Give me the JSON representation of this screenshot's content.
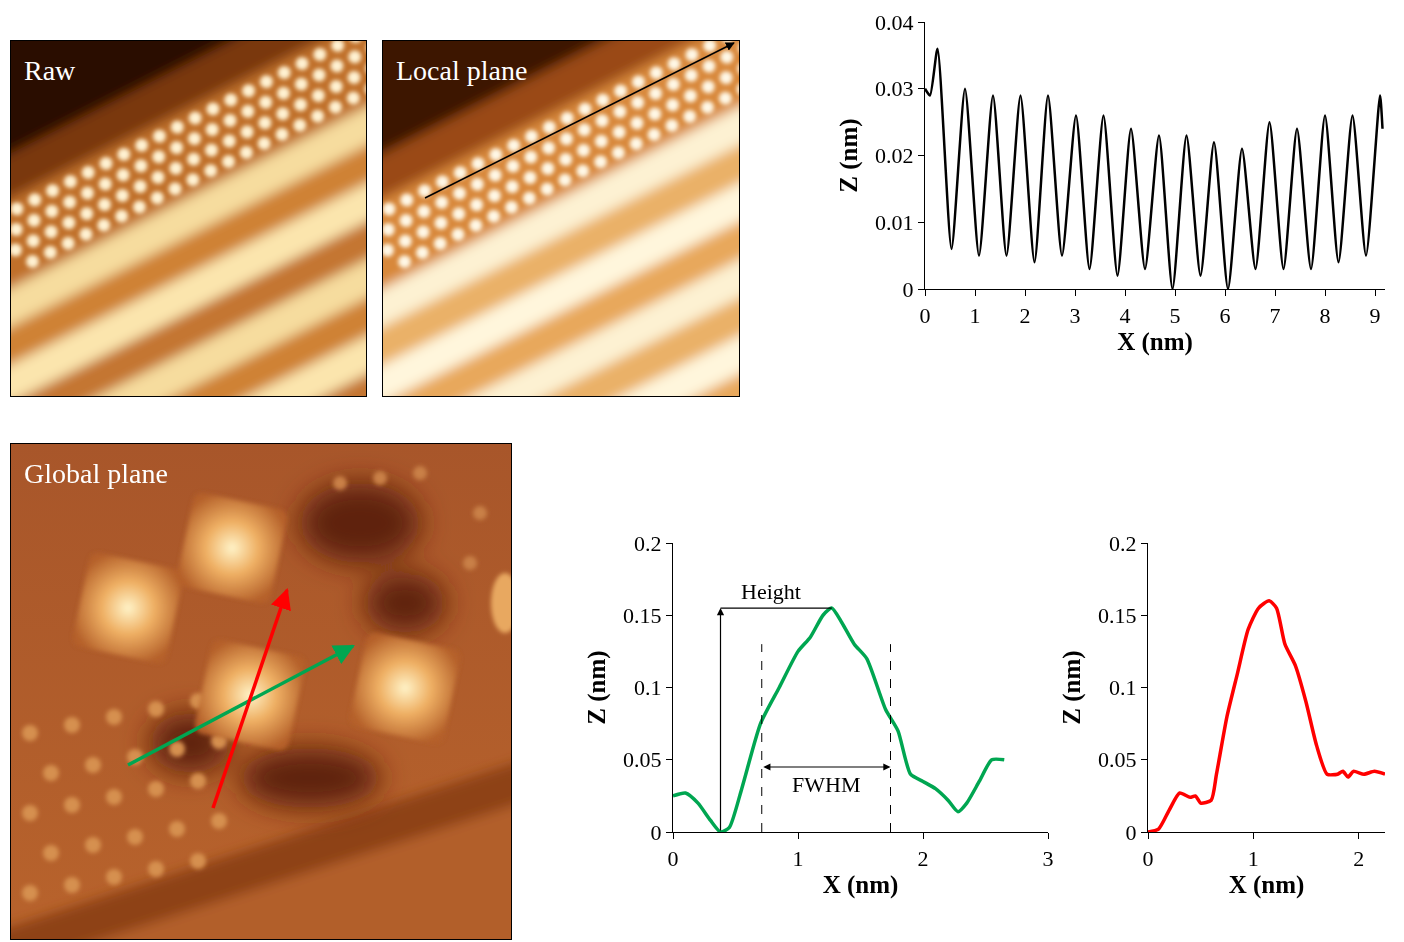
{
  "chart_data": [
    {
      "type": "line",
      "color": "#000000",
      "xlabel": "X (nm)",
      "ylabel": "Z (nm)",
      "x": [
        0,
        0.1,
        0.25,
        0.53,
        0.8,
        1.08,
        1.36,
        1.63,
        1.91,
        2.19,
        2.46,
        2.74,
        3.02,
        3.29,
        3.57,
        3.85,
        4.12,
        4.4,
        4.68,
        4.95,
        5.23,
        5.51,
        5.78,
        6.06,
        6.34,
        6.61,
        6.89,
        7.17,
        7.44,
        7.72,
        8.0,
        8.27,
        8.55,
        8.82,
        9.1,
        9.15
      ],
      "values": [
        0.03,
        0.029,
        0.036,
        0.006,
        0.03,
        0.005,
        0.029,
        0.005,
        0.029,
        0.004,
        0.029,
        0.005,
        0.026,
        0.003,
        0.026,
        0.002,
        0.024,
        0.003,
        0.023,
        0.0,
        0.023,
        0.002,
        0.022,
        0.0,
        0.021,
        0.003,
        0.025,
        0.003,
        0.024,
        0.003,
        0.026,
        0.004,
        0.026,
        0.005,
        0.029,
        0.024
      ],
      "xlim": [
        0,
        9.2
      ],
      "ylim": [
        0,
        0.04
      ],
      "xticks": [
        0,
        1,
        2,
        3,
        4,
        5,
        6,
        7,
        8,
        9
      ],
      "yticks": [
        0,
        0.01,
        0.02,
        0.03,
        0.04
      ],
      "grid": false
    },
    {
      "type": "line",
      "color": "#00a651",
      "xlabel": "X (nm)",
      "ylabel": "Z (nm)",
      "x": [
        0,
        0.1,
        0.2,
        0.3,
        0.38,
        0.45,
        0.55,
        0.7,
        0.85,
        1.0,
        1.1,
        1.2,
        1.27,
        1.35,
        1.45,
        1.55,
        1.7,
        1.8,
        1.9,
        2.0,
        2.1,
        2.2,
        2.28,
        2.35,
        2.45,
        2.55,
        2.65
      ],
      "values": [
        0.025,
        0.027,
        0.02,
        0.008,
        0,
        0.003,
        0.03,
        0.075,
        0.1,
        0.125,
        0.135,
        0.15,
        0.155,
        0.145,
        0.13,
        0.12,
        0.085,
        0.07,
        0.04,
        0.035,
        0.03,
        0.022,
        0.014,
        0.02,
        0.035,
        0.05,
        0.05
      ],
      "xlim": [
        0,
        3
      ],
      "ylim": [
        0,
        0.2
      ],
      "xticks": [
        0,
        1,
        2,
        3
      ],
      "yticks": [
        0,
        0.05,
        0.1,
        0.15,
        0.2
      ],
      "grid": false,
      "annotations": [
        {
          "text": "Height",
          "x": 0.38,
          "y": [
            0,
            0.155
          ]
        },
        {
          "text": "FWHM",
          "x": [
            0.71,
            1.74
          ],
          "y": 0.045
        }
      ]
    },
    {
      "type": "line",
      "color": "#ff0000",
      "xlabel": "X (nm)",
      "ylabel": "Z (nm)",
      "x": [
        0,
        0.1,
        0.2,
        0.3,
        0.4,
        0.45,
        0.5,
        0.6,
        0.65,
        0.75,
        0.85,
        0.95,
        1.05,
        1.15,
        1.22,
        1.3,
        1.4,
        1.5,
        1.6,
        1.7,
        1.8,
        1.85,
        1.9,
        1.95,
        2.05,
        2.15,
        2.25
      ],
      "values": [
        0,
        0.002,
        0.015,
        0.027,
        0.024,
        0.025,
        0.02,
        0.022,
        0.04,
        0.08,
        0.11,
        0.14,
        0.155,
        0.16,
        0.155,
        0.13,
        0.115,
        0.09,
        0.06,
        0.04,
        0.04,
        0.042,
        0.038,
        0.042,
        0.04,
        0.042,
        0.04
      ],
      "xlim": [
        0,
        2.25
      ],
      "ylim": [
        0,
        0.2
      ],
      "xticks": [
        0,
        1,
        2
      ],
      "yticks": [
        0,
        0.05,
        0.1,
        0.15,
        0.2
      ],
      "grid": false
    }
  ],
  "images": [
    {
      "label": "Raw"
    },
    {
      "label": "Local plane"
    },
    {
      "label": "Global plane"
    }
  ]
}
